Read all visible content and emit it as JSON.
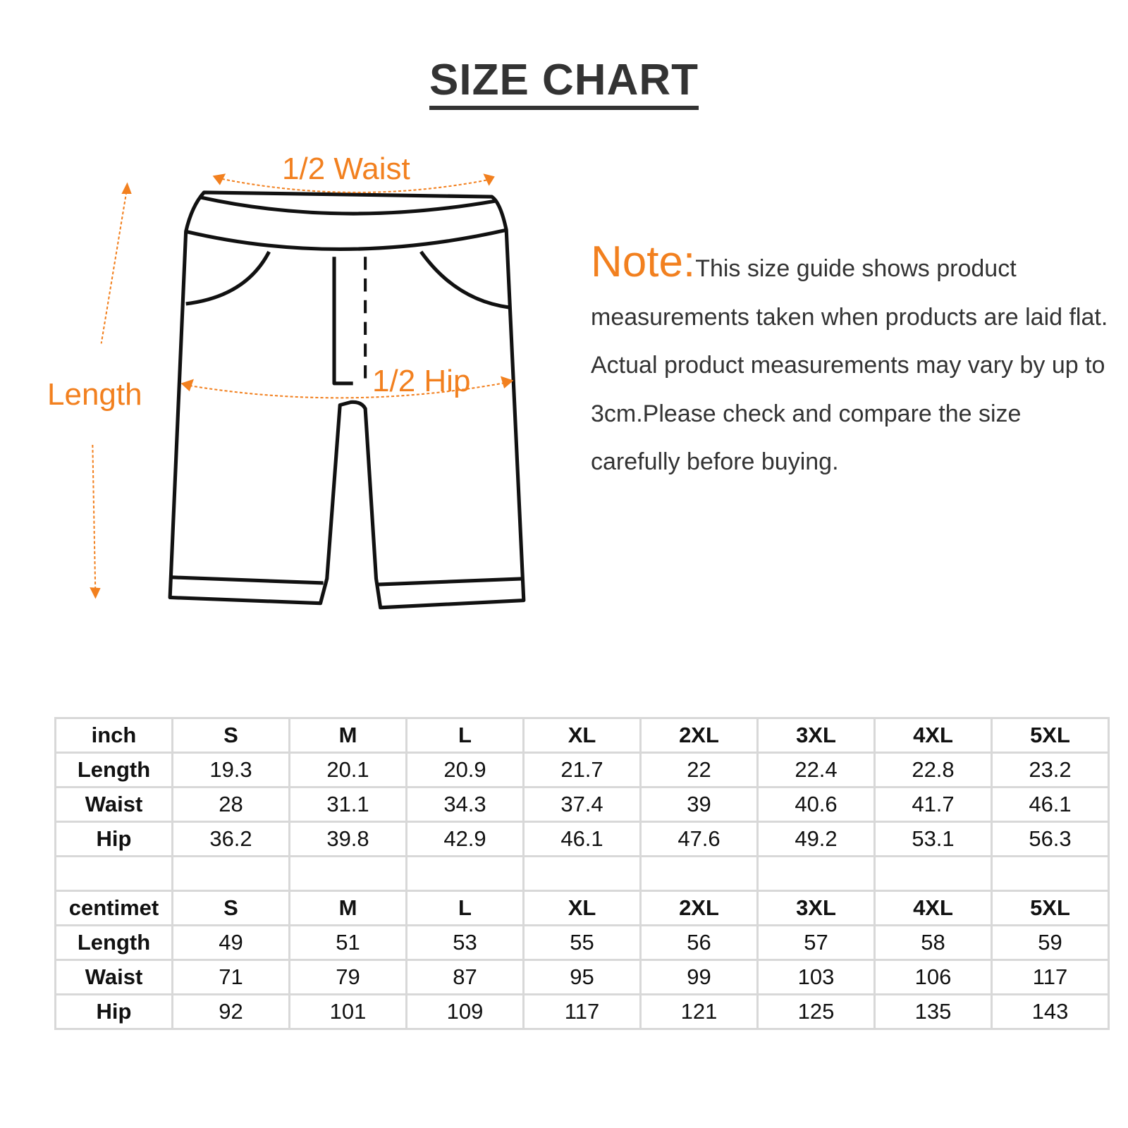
{
  "title": "SIZE CHART",
  "diagram": {
    "waist_label": "1/2 Waist",
    "hip_label": "1/2 Hip",
    "length_label": "Length",
    "accent_color": "#f2801f"
  },
  "note": {
    "heading": "Note:",
    "text": "This size guide shows product measurements taken when products are laid flat. Actual product measurements may vary by up to 3cm.Please check and compare the size carefully before buying."
  },
  "tables": [
    {
      "unit": "inch",
      "sizes": [
        "S",
        "M",
        "L",
        "XL",
        "2XL",
        "3XL",
        "4XL",
        "5XL"
      ],
      "rows": [
        {
          "label": "Length",
          "values": [
            "19.3",
            "20.1",
            "20.9",
            "21.7",
            "22",
            "22.4",
            "22.8",
            "23.2"
          ]
        },
        {
          "label": "Waist",
          "values": [
            "28",
            "31.1",
            "34.3",
            "37.4",
            "39",
            "40.6",
            "41.7",
            "46.1"
          ]
        },
        {
          "label": "Hip",
          "values": [
            "36.2",
            "39.8",
            "42.9",
            "46.1",
            "47.6",
            "49.2",
            "53.1",
            "56.3"
          ]
        }
      ]
    },
    {
      "unit": "centimet",
      "sizes": [
        "S",
        "M",
        "L",
        "XL",
        "2XL",
        "3XL",
        "4XL",
        "5XL"
      ],
      "rows": [
        {
          "label": "Length",
          "values": [
            "49",
            "51",
            "53",
            "55",
            "56",
            "57",
            "58",
            "59"
          ]
        },
        {
          "label": "Waist",
          "values": [
            "71",
            "79",
            "87",
            "95",
            "99",
            "103",
            "106",
            "117"
          ]
        },
        {
          "label": "Hip",
          "values": [
            "92",
            "101",
            "109",
            "117",
            "121",
            "125",
            "135",
            "143"
          ]
        }
      ]
    }
  ]
}
